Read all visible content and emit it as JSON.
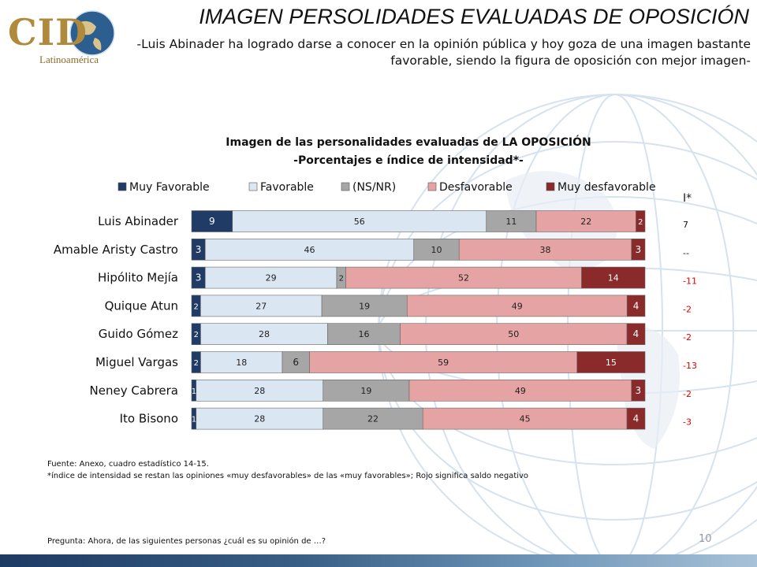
{
  "header": {
    "title": "IMAGEN PERSOLIDADES EVALUADAS DE OPOSICIÓN",
    "subtitle": "-Luis Abinader ha logrado darse a conocer en la opinión pública y hoy goza de una imagen bastante favorable, siendo la figura de oposición con mejor imagen-"
  },
  "logo": {
    "name": "CID",
    "sub": "Latinoamérica"
  },
  "chart_data": {
    "type": "bar",
    "stacked": true,
    "orientation": "horizontal",
    "title": "Imagen de las personalidades evaluadas de LA OPOSICIÓN",
    "subtitle": "-Porcentajes e índice de intensidad*-",
    "legend_position": "top",
    "categories": [
      "Luis Abinader",
      "Amable Aristy Castro",
      "Hipólito Mejía",
      "Quique Atun",
      "Guido Gómez",
      "Miguel Vargas",
      "Neney Cabrera",
      "Ito Bisono"
    ],
    "series": [
      {
        "name": "Muy Favorable",
        "color": "#1f3b66",
        "values": [
          9,
          3,
          3,
          2,
          2,
          2,
          1,
          1
        ]
      },
      {
        "name": "Favorable",
        "color": "#dbe6f3",
        "values": [
          56,
          46,
          29,
          27,
          28,
          18,
          28,
          28
        ]
      },
      {
        "name": "(NS/NR)",
        "color": "#a6a6a6",
        "values": [
          11,
          10,
          2,
          19,
          16,
          6,
          19,
          22
        ]
      },
      {
        "name": "Desfavorable",
        "color": "#e6a3a3",
        "values": [
          22,
          38,
          52,
          49,
          50,
          59,
          49,
          45
        ]
      },
      {
        "name": "Muy desfavorable",
        "color": "#8b2a2a",
        "values": [
          2,
          3,
          14,
          4,
          4,
          15,
          3,
          4
        ]
      }
    ],
    "index": {
      "header": "I*",
      "values": [
        "7",
        "--",
        "-11",
        "-2",
        "-2",
        "-13",
        "-2",
        "-3"
      ],
      "negative_color": "#e00000"
    }
  },
  "footer": {
    "source": "Fuente: Anexo, cuadro estadístico 14-15.",
    "note": "*índice de intensidad se restan las opiniones «muy desfavorables» de las «muy favorables»; Rojo significa saldo negativo",
    "question": "Pregunta: Ahora, de las siguientes personas ¿cuál es su opinión de …?",
    "page": "10"
  }
}
